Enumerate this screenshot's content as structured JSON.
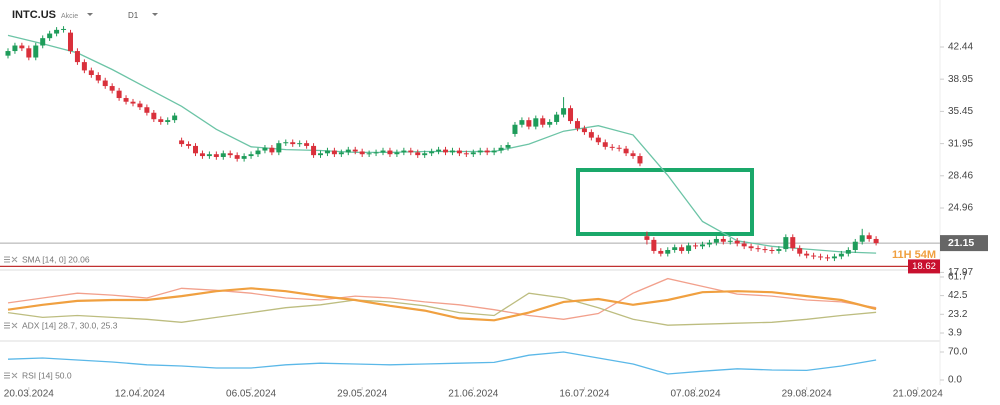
{
  "header": {
    "symbol": "INTC.US",
    "kind": "Akcie",
    "timeframe": "D1"
  },
  "chart_data": {
    "type": "candlestick",
    "xlim": [
      -1.15,
      134.2
    ],
    "xticks": [
      {
        "value": 3,
        "label": "20.03.2024"
      },
      {
        "value": 19,
        "label": "12.04.2024"
      },
      {
        "value": 35,
        "label": "06.05.2024"
      },
      {
        "value": 51,
        "label": "29.05.2024"
      },
      {
        "value": 67,
        "label": "21.06.2024"
      },
      {
        "value": 83,
        "label": "16.07.2024"
      },
      {
        "value": 99,
        "label": "07.08.2024"
      },
      {
        "value": 115,
        "label": "29.08.2024"
      },
      {
        "value": 131,
        "label": "21.09.2024"
      }
    ],
    "up_color": "#1e9c5a",
    "down_color": "#d9303b",
    "price": {
      "ylim": [
        18.23,
        47.0
      ],
      "yticks": [
        42.44,
        38.95,
        35.45,
        31.95,
        28.46,
        24.96,
        17.97
      ],
      "last": 21.15,
      "countdown": "11H 54M",
      "level": 18.62,
      "ohlc": [
        [
          41.5,
          42.3,
          41.2,
          42.0
        ],
        [
          42.0,
          42.9,
          41.7,
          42.6
        ],
        [
          42.6,
          42.9,
          42.0,
          42.3
        ],
        [
          42.3,
          42.6,
          41.0,
          41.3
        ],
        [
          41.3,
          42.9,
          41.0,
          42.6
        ],
        [
          42.6,
          43.7,
          42.3,
          43.4
        ],
        [
          43.4,
          44.2,
          43.1,
          43.9
        ],
        [
          43.9,
          44.6,
          43.6,
          44.3
        ],
        [
          44.3,
          44.7,
          44.0,
          44.4
        ],
        [
          44.0,
          44.3,
          41.7,
          42.0
        ],
        [
          42.0,
          42.3,
          40.5,
          40.8
        ],
        [
          40.8,
          41.1,
          39.6,
          39.9
        ],
        [
          39.9,
          40.2,
          39.1,
          39.4
        ],
        [
          39.4,
          39.7,
          38.5,
          38.8
        ],
        [
          38.8,
          39.1,
          37.9,
          38.2
        ],
        [
          38.2,
          38.5,
          37.4,
          37.7
        ],
        [
          37.7,
          38.0,
          36.6,
          36.9
        ],
        [
          36.9,
          37.2,
          36.2,
          36.5
        ],
        [
          36.5,
          36.8,
          36.0,
          36.3
        ],
        [
          36.3,
          36.6,
          35.6,
          35.9
        ],
        [
          35.9,
          36.2,
          35.0,
          35.3
        ],
        [
          35.3,
          35.6,
          34.3,
          34.6
        ],
        [
          34.6,
          34.9,
          34.0,
          34.3
        ],
        [
          34.3,
          34.8,
          34.0,
          34.5
        ],
        [
          34.5,
          35.3,
          34.2,
          35.0
        ],
        [
          32.3,
          32.6,
          31.6,
          31.9
        ],
        [
          31.9,
          32.2,
          31.4,
          31.7
        ],
        [
          31.7,
          32.0,
          30.6,
          30.9
        ],
        [
          30.9,
          31.2,
          30.3,
          30.6
        ],
        [
          30.6,
          31.1,
          30.3,
          30.8
        ],
        [
          30.8,
          31.1,
          30.2,
          30.5
        ],
        [
          30.5,
          31.2,
          30.2,
          30.9
        ],
        [
          30.9,
          31.2,
          30.4,
          30.7
        ],
        [
          30.7,
          31.0,
          30.0,
          30.3
        ],
        [
          30.3,
          30.9,
          30.0,
          30.6
        ],
        [
          30.6,
          31.1,
          30.3,
          30.8
        ],
        [
          30.8,
          31.5,
          30.5,
          31.2
        ],
        [
          31.2,
          31.8,
          30.9,
          31.5
        ],
        [
          31.5,
          31.8,
          30.7,
          31.0
        ],
        [
          31.0,
          32.3,
          30.7,
          32.0
        ],
        [
          32.0,
          32.4,
          31.7,
          32.1
        ],
        [
          32.1,
          32.4,
          31.6,
          31.9
        ],
        [
          31.9,
          32.3,
          31.6,
          32.0
        ],
        [
          32.0,
          32.3,
          31.4,
          31.7
        ],
        [
          31.7,
          32.0,
          30.4,
          30.7
        ],
        [
          30.7,
          31.2,
          30.4,
          30.9
        ],
        [
          30.9,
          31.5,
          30.6,
          31.2
        ],
        [
          31.2,
          31.5,
          30.5,
          30.8
        ],
        [
          30.8,
          31.3,
          30.5,
          31.0
        ],
        [
          31.0,
          31.6,
          30.7,
          31.3
        ],
        [
          31.3,
          31.6,
          30.8,
          31.1
        ],
        [
          31.1,
          31.4,
          30.5,
          30.8
        ],
        [
          30.8,
          31.2,
          30.5,
          30.9
        ],
        [
          30.9,
          31.3,
          30.6,
          31.0
        ],
        [
          31.0,
          31.5,
          30.7,
          31.2
        ],
        [
          31.2,
          31.5,
          30.5,
          30.8
        ],
        [
          30.8,
          31.3,
          30.5,
          31.0
        ],
        [
          31.0,
          31.5,
          30.7,
          31.2
        ],
        [
          31.2,
          31.5,
          30.7,
          31.0
        ],
        [
          31.0,
          31.3,
          30.4,
          30.7
        ],
        [
          30.7,
          31.2,
          30.4,
          30.9
        ],
        [
          30.9,
          31.4,
          30.6,
          31.1
        ],
        [
          31.1,
          31.6,
          30.8,
          31.3
        ],
        [
          31.3,
          31.6,
          30.7,
          31.0
        ],
        [
          31.0,
          31.5,
          30.7,
          31.2
        ],
        [
          31.2,
          31.5,
          30.6,
          30.9
        ],
        [
          30.9,
          31.2,
          30.5,
          30.8
        ],
        [
          30.8,
          31.3,
          30.5,
          31.0
        ],
        [
          31.0,
          31.5,
          30.7,
          31.2
        ],
        [
          31.2,
          31.5,
          30.7,
          31.0
        ],
        [
          31.0,
          31.5,
          30.7,
          31.2
        ],
        [
          31.2,
          31.8,
          30.9,
          31.5
        ],
        [
          31.5,
          32.1,
          31.2,
          31.8
        ],
        [
          33.0,
          34.3,
          32.7,
          34.0
        ],
        [
          34.0,
          34.8,
          33.7,
          34.5
        ],
        [
          34.5,
          34.8,
          33.5,
          33.8
        ],
        [
          33.8,
          35.0,
          33.5,
          34.7
        ],
        [
          34.7,
          35.0,
          33.7,
          34.0
        ],
        [
          34.0,
          34.6,
          33.7,
          34.3
        ],
        [
          34.3,
          35.4,
          34.0,
          35.1
        ],
        [
          35.1,
          37.0,
          34.8,
          35.8
        ],
        [
          35.8,
          36.1,
          34.1,
          34.4
        ],
        [
          34.4,
          34.7,
          33.3,
          33.6
        ],
        [
          33.6,
          33.9,
          32.9,
          33.2
        ],
        [
          33.2,
          33.5,
          32.3,
          32.6
        ],
        [
          32.6,
          32.9,
          31.8,
          32.1
        ],
        [
          32.1,
          32.4,
          31.3,
          31.6
        ],
        [
          31.6,
          31.9,
          31.2,
          31.5
        ],
        [
          31.5,
          31.8,
          31.1,
          31.4
        ],
        [
          31.4,
          31.7,
          30.6,
          30.9
        ],
        [
          30.9,
          31.2,
          30.3,
          30.6
        ],
        [
          30.6,
          30.9,
          29.5,
          29.8
        ],
        [
          21.9,
          22.4,
          21.0,
          21.5
        ],
        [
          21.5,
          21.8,
          20.0,
          20.3
        ],
        [
          20.3,
          20.6,
          19.7,
          20.0
        ],
        [
          20.0,
          20.7,
          19.7,
          20.4
        ],
        [
          20.4,
          21.0,
          20.1,
          20.7
        ],
        [
          20.7,
          21.0,
          20.0,
          20.3
        ],
        [
          20.3,
          21.2,
          20.0,
          20.9
        ],
        [
          20.9,
          21.2,
          20.5,
          20.8
        ],
        [
          20.8,
          21.3,
          20.5,
          21.0
        ],
        [
          21.0,
          21.5,
          20.7,
          21.2
        ],
        [
          21.2,
          21.9,
          20.9,
          21.6
        ],
        [
          21.6,
          21.9,
          21.0,
          21.3
        ],
        [
          21.3,
          21.7,
          21.0,
          21.4
        ],
        [
          21.4,
          21.7,
          20.8,
          21.1
        ],
        [
          21.1,
          21.4,
          20.5,
          20.8
        ],
        [
          20.8,
          21.1,
          20.3,
          20.6
        ],
        [
          20.6,
          20.9,
          20.2,
          20.5
        ],
        [
          20.5,
          20.8,
          20.1,
          20.4
        ],
        [
          20.4,
          20.7,
          20.0,
          20.3
        ],
        [
          20.3,
          20.8,
          20.0,
          20.5
        ],
        [
          20.5,
          22.1,
          20.2,
          21.8
        ],
        [
          21.8,
          22.1,
          20.3,
          20.6
        ],
        [
          20.6,
          20.9,
          19.7,
          20.0
        ],
        [
          20.0,
          20.3,
          19.5,
          19.8
        ],
        [
          19.8,
          20.1,
          19.4,
          19.7
        ],
        [
          19.7,
          20.0,
          19.3,
          19.6
        ],
        [
          19.6,
          19.9,
          19.2,
          19.5
        ],
        [
          19.5,
          20.0,
          19.2,
          19.7
        ],
        [
          19.7,
          20.3,
          19.4,
          20.0
        ],
        [
          20.0,
          20.7,
          19.7,
          20.4
        ],
        [
          20.4,
          21.6,
          20.1,
          21.3
        ],
        [
          21.3,
          22.7,
          21.0,
          22.0
        ],
        [
          22.0,
          22.3,
          21.3,
          21.6
        ],
        [
          21.6,
          21.9,
          20.9,
          21.15
        ]
      ],
      "series": [
        {
          "color": "#6cc4a6",
          "x": [
            0,
            5,
            10,
            15,
            20,
            25,
            30,
            35,
            40,
            45,
            50,
            55,
            60,
            65,
            70,
            75,
            80,
            85,
            90,
            95,
            100,
            105,
            110,
            115,
            120,
            125
          ],
          "values": [
            43.7,
            42.8,
            41.8,
            40.0,
            38.0,
            36.0,
            33.5,
            31.6,
            31.3,
            31.2,
            31.0,
            31.0,
            31.1,
            31.1,
            31.1,
            31.9,
            33.3,
            33.9,
            32.9,
            28.5,
            23.5,
            21.4,
            20.8,
            20.5,
            20.2,
            20.06
          ]
        }
      ],
      "label": "SMA [14, 0] 20.06"
    },
    "adx": {
      "ylim": [
        -3.3,
        68.9
      ],
      "yticks": [
        61.7,
        42.5,
        23.2,
        3.9
      ],
      "label": "ADX [14] 28.7, 30.0, 25.3",
      "series": [
        {
          "color": "#f2a08c",
          "x": [
            0,
            5,
            10,
            15,
            20,
            25,
            30,
            35,
            40,
            45,
            50,
            55,
            60,
            65,
            70,
            75,
            80,
            85,
            90,
            95,
            100,
            105,
            110,
            115,
            120,
            125
          ],
          "values": [
            35,
            40,
            45,
            43,
            40,
            50,
            48,
            45,
            40,
            38,
            42,
            40,
            36,
            33,
            28,
            22,
            18,
            24,
            45,
            60,
            52,
            44,
            42,
            38,
            36,
            30.0
          ]
        },
        {
          "color": "#bdbd80",
          "x": [
            0,
            5,
            10,
            15,
            20,
            25,
            30,
            35,
            40,
            45,
            50,
            55,
            60,
            65,
            70,
            75,
            80,
            85,
            90,
            95,
            100,
            105,
            110,
            115,
            120,
            125
          ],
          "values": [
            25,
            20,
            22,
            20,
            18,
            15,
            20,
            25,
            30,
            33,
            38,
            36,
            32,
            25,
            22,
            45,
            40,
            30,
            18,
            12,
            13,
            14,
            15,
            18,
            22,
            25.3
          ]
        },
        {
          "color": "#f0a040",
          "x": [
            0,
            5,
            10,
            15,
            20,
            25,
            30,
            35,
            40,
            45,
            50,
            55,
            60,
            65,
            70,
            75,
            80,
            85,
            90,
            95,
            100,
            105,
            110,
            115,
            120,
            125
          ],
          "values": [
            28,
            33,
            37,
            38,
            38,
            42,
            47,
            50,
            47,
            42,
            38,
            32,
            27,
            19,
            17,
            25,
            36,
            39,
            33,
            38,
            46,
            47,
            46,
            42,
            38,
            28.7
          ]
        }
      ]
    },
    "rsi": {
      "ylim": [
        -17.5,
        92.5
      ],
      "yticks": [
        {
          "value": 70,
          "label": "70.0"
        },
        {
          "value": 0,
          "label": "0.0"
        }
      ],
      "label": "RSI [14] 50.0",
      "series": [
        {
          "color": "#5bb8e8",
          "x": [
            0,
            5,
            10,
            15,
            20,
            25,
            30,
            35,
            40,
            45,
            50,
            55,
            60,
            65,
            70,
            75,
            80,
            85,
            90,
            95,
            100,
            105,
            110,
            115,
            120,
            125
          ],
          "values": [
            52,
            55,
            50,
            45,
            38,
            35,
            30,
            30,
            38,
            42,
            40,
            38,
            40,
            42,
            44,
            62,
            70,
            55,
            40,
            15,
            22,
            28,
            25,
            24,
            35,
            50.0
          ]
        }
      ]
    }
  }
}
